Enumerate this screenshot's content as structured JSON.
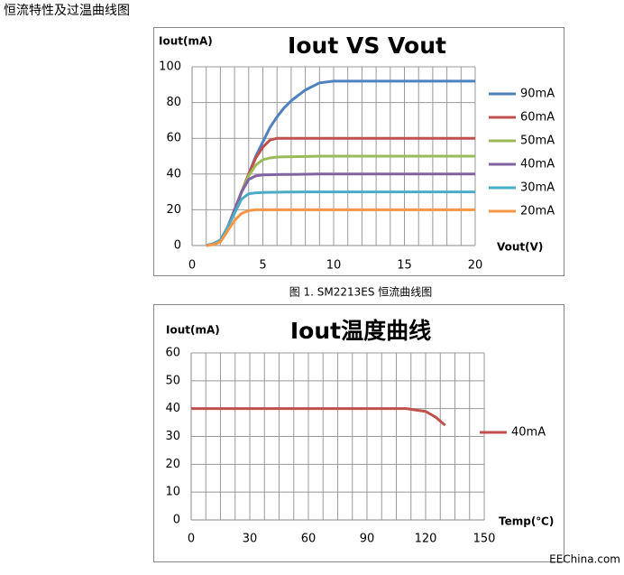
{
  "heading": "恒流特性及过温曲线图",
  "caption": "图 1. SM2213ES 恒流曲线图",
  "watermark": "EEChina.com",
  "chart_data": [
    {
      "type": "line",
      "title": "Iout VS Vout",
      "y_label": "Iout(mA)",
      "x_label": "Vout(V)",
      "xlim": [
        0,
        20
      ],
      "xticks": [
        0,
        5,
        10,
        15,
        20
      ],
      "x_minor_ticks": [
        1,
        2,
        3,
        4,
        6,
        7,
        8,
        9,
        11,
        12,
        13,
        14,
        16,
        17,
        18,
        19
      ],
      "ylim": [
        0,
        100
      ],
      "yticks": [
        0,
        20,
        40,
        60,
        80,
        100
      ],
      "grid": true,
      "legend": "right",
      "x": [
        1,
        1.5,
        2,
        2.5,
        3,
        3.5,
        4,
        4.5,
        5,
        5.5,
        6,
        6.5,
        7,
        8,
        9,
        10,
        12,
        14,
        16,
        18,
        20
      ],
      "series": [
        {
          "name": "90mA",
          "color": "#4f81bd",
          "values": [
            0,
            1,
            3,
            10,
            20,
            30,
            40,
            50,
            58,
            66,
            72,
            77,
            81,
            87,
            91,
            92,
            92,
            92,
            92,
            92,
            92
          ]
        },
        {
          "name": "60mA",
          "color": "#c0504d",
          "values": [
            0,
            1,
            3,
            10,
            20,
            30,
            40,
            49,
            55,
            59,
            60,
            60,
            60,
            60,
            60,
            60,
            60,
            60,
            60,
            60,
            60
          ]
        },
        {
          "name": "50mA",
          "color": "#9bbb59",
          "values": [
            0,
            1,
            3,
            10,
            20,
            30,
            39,
            45,
            48,
            49,
            49.5,
            49.6,
            49.7,
            49.8,
            50,
            50,
            50,
            50,
            50,
            50,
            50
          ]
        },
        {
          "name": "40mA",
          "color": "#8064a2",
          "values": [
            0,
            1,
            3,
            10,
            20,
            30,
            37,
            39,
            39.5,
            39.6,
            39.7,
            39.8,
            39.8,
            39.9,
            40,
            40,
            40,
            40,
            40,
            40,
            40
          ]
        },
        {
          "name": "30mA",
          "color": "#4bacc6",
          "values": [
            0,
            1,
            3,
            10,
            18,
            26,
            29,
            29.5,
            29.7,
            29.8,
            29.8,
            29.9,
            29.9,
            30,
            30,
            30,
            30,
            30,
            30,
            30,
            30
          ]
        },
        {
          "name": "20mA",
          "color": "#f79646",
          "values": [
            0,
            0.5,
            2,
            8,
            14,
            18,
            19.5,
            20,
            20,
            20,
            20,
            20,
            20,
            20,
            20,
            20,
            20,
            20,
            20,
            20,
            20
          ]
        }
      ]
    },
    {
      "type": "line",
      "title": "Iout温度曲线",
      "y_label": "Iout(mA)",
      "x_label": "Temp(℃)",
      "xlim": [
        0,
        150
      ],
      "xticks": [
        0,
        30,
        60,
        90,
        120,
        150
      ],
      "x_minor_ticks": [
        7.5,
        15,
        22.5,
        37.5,
        45,
        52.5,
        67.5,
        75,
        82.5,
        97.5,
        105,
        112.5,
        127.5,
        135,
        142.5
      ],
      "ylim": [
        0,
        60
      ],
      "yticks": [
        0,
        10,
        20,
        30,
        40,
        50,
        60
      ],
      "grid": true,
      "legend": "right",
      "x": [
        0,
        20,
        40,
        60,
        80,
        100,
        110,
        115,
        120,
        125,
        130
      ],
      "series": [
        {
          "name": "40mA",
          "color": "#c0504d",
          "values": [
            40,
            40,
            40,
            40,
            40,
            40,
            40,
            39.5,
            39,
            37,
            34
          ]
        }
      ]
    }
  ]
}
